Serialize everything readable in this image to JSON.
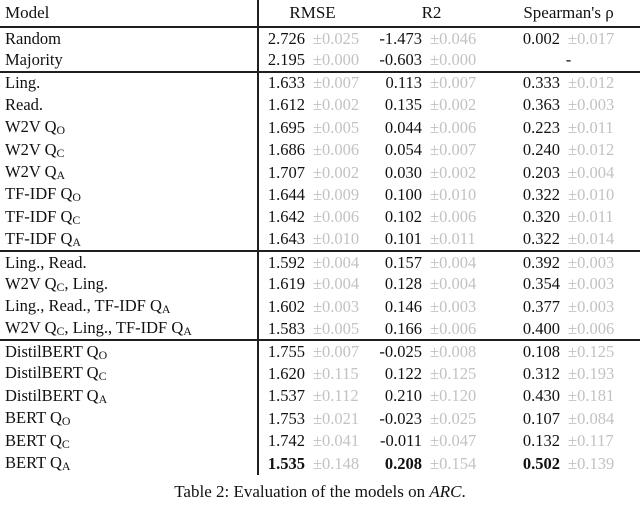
{
  "colors": {
    "background": "#ffffff",
    "text": "#111111",
    "std_muted": "#c2c2c2",
    "rule": "#1f1f1f"
  },
  "header": {
    "model": "Model",
    "rmse": "RMSE",
    "r2": "R2",
    "spearman": "Spearman's ρ"
  },
  "caption": {
    "prefix": "Table 2: Evaluation of the models on ",
    "italic": "ARC",
    "suffix": "."
  },
  "table": {
    "groups": [
      {
        "rows": [
          {
            "model": [
              {
                "t": "Random"
              }
            ],
            "rmse": "2.726",
            "rmse_std": "±0.025",
            "r2": "-1.473",
            "r2_std": "±0.046",
            "rho": "0.002",
            "rho_std": "±0.017",
            "bold": false
          },
          {
            "model": [
              {
                "t": "Majority"
              }
            ],
            "rmse": "2.195",
            "rmse_std": "±0.000",
            "r2": "-0.603",
            "r2_std": "±0.000",
            "rho": "-",
            "rho_std": null,
            "bold": false
          }
        ]
      },
      {
        "rows": [
          {
            "model": [
              {
                "t": "Ling."
              }
            ],
            "rmse": "1.633",
            "rmse_std": "±0.007",
            "r2": "0.113",
            "r2_std": "±0.007",
            "rho": "0.333",
            "rho_std": "±0.012",
            "bold": false
          },
          {
            "model": [
              {
                "t": "Read."
              }
            ],
            "rmse": "1.612",
            "rmse_std": "±0.002",
            "r2": "0.135",
            "r2_std": "±0.002",
            "rho": "0.363",
            "rho_std": "±0.003",
            "bold": false
          },
          {
            "model": [
              {
                "t": "W2V Q"
              },
              {
                "t": "O",
                "sub": true
              }
            ],
            "rmse": "1.695",
            "rmse_std": "±0.005",
            "r2": "0.044",
            "r2_std": "±0.006",
            "rho": "0.223",
            "rho_std": "±0.011",
            "bold": false
          },
          {
            "model": [
              {
                "t": "W2V Q"
              },
              {
                "t": "C",
                "sub": true
              }
            ],
            "rmse": "1.686",
            "rmse_std": "±0.006",
            "r2": "0.054",
            "r2_std": "±0.007",
            "rho": "0.240",
            "rho_std": "±0.012",
            "bold": false
          },
          {
            "model": [
              {
                "t": "W2V Q"
              },
              {
                "t": "A",
                "sub": true
              }
            ],
            "rmse": "1.707",
            "rmse_std": "±0.002",
            "r2": "0.030",
            "r2_std": "±0.002",
            "rho": "0.203",
            "rho_std": "±0.004",
            "bold": false
          },
          {
            "model": [
              {
                "t": "TF-IDF Q"
              },
              {
                "t": "O",
                "sub": true
              }
            ],
            "rmse": "1.644",
            "rmse_std": "±0.009",
            "r2": "0.100",
            "r2_std": "±0.010",
            "rho": "0.322",
            "rho_std": "±0.010",
            "bold": false
          },
          {
            "model": [
              {
                "t": "TF-IDF Q"
              },
              {
                "t": "C",
                "sub": true
              }
            ],
            "rmse": "1.642",
            "rmse_std": "±0.006",
            "r2": "0.102",
            "r2_std": "±0.006",
            "rho": "0.320",
            "rho_std": "±0.011",
            "bold": false
          },
          {
            "model": [
              {
                "t": "TF-IDF Q"
              },
              {
                "t": "A",
                "sub": true
              }
            ],
            "rmse": "1.643",
            "rmse_std": "±0.010",
            "r2": "0.101",
            "r2_std": "±0.011",
            "rho": "0.322",
            "rho_std": "±0.014",
            "bold": false
          }
        ]
      },
      {
        "rows": [
          {
            "model": [
              {
                "t": "Ling., Read."
              }
            ],
            "rmse": "1.592",
            "rmse_std": "±0.004",
            "r2": "0.157",
            "r2_std": "±0.004",
            "rho": "0.392",
            "rho_std": "±0.003",
            "bold": false
          },
          {
            "model": [
              {
                "t": "W2V Q"
              },
              {
                "t": "C",
                "sub": true
              },
              {
                "t": ", Ling."
              }
            ],
            "rmse": "1.619",
            "rmse_std": "±0.004",
            "r2": "0.128",
            "r2_std": "±0.004",
            "rho": "0.354",
            "rho_std": "±0.003",
            "bold": false
          },
          {
            "model": [
              {
                "t": "Ling., Read., TF-IDF Q"
              },
              {
                "t": "A",
                "sub": true
              }
            ],
            "rmse": "1.602",
            "rmse_std": "±0.003",
            "r2": "0.146",
            "r2_std": "±0.003",
            "rho": "0.377",
            "rho_std": "±0.003",
            "bold": false
          },
          {
            "model": [
              {
                "t": "W2V Q"
              },
              {
                "t": "C",
                "sub": true
              },
              {
                "t": ", Ling., TF-IDF Q"
              },
              {
                "t": "A",
                "sub": true
              }
            ],
            "rmse": "1.583",
            "rmse_std": "±0.005",
            "r2": "0.166",
            "r2_std": "±0.006",
            "rho": "0.400",
            "rho_std": "±0.006",
            "bold": false
          }
        ]
      },
      {
        "rows": [
          {
            "model": [
              {
                "t": "DistilBERT Q"
              },
              {
                "t": "O",
                "sub": true
              }
            ],
            "rmse": "1.755",
            "rmse_std": "±0.007",
            "r2": "-0.025",
            "r2_std": "±0.008",
            "rho": "0.108",
            "rho_std": "±0.125",
            "bold": false
          },
          {
            "model": [
              {
                "t": "DistilBERT Q"
              },
              {
                "t": "C",
                "sub": true
              }
            ],
            "rmse": "1.620",
            "rmse_std": "±0.115",
            "r2": "0.122",
            "r2_std": "±0.125",
            "rho": "0.312",
            "rho_std": "±0.193",
            "bold": false
          },
          {
            "model": [
              {
                "t": "DistilBERT Q"
              },
              {
                "t": "A",
                "sub": true
              }
            ],
            "rmse": "1.537",
            "rmse_std": "±0.112",
            "r2": "0.210",
            "r2_std": "±0.120",
            "rho": "0.430",
            "rho_std": "±0.181",
            "bold": false
          },
          {
            "model": [
              {
                "t": "BERT Q"
              },
              {
                "t": "O",
                "sub": true
              }
            ],
            "rmse": "1.753",
            "rmse_std": "±0.021",
            "r2": "-0.023",
            "r2_std": "±0.025",
            "rho": "0.107",
            "rho_std": "±0.084",
            "bold": false
          },
          {
            "model": [
              {
                "t": "BERT Q"
              },
              {
                "t": "C",
                "sub": true
              }
            ],
            "rmse": "1.742",
            "rmse_std": "±0.041",
            "r2": "-0.011",
            "r2_std": "±0.047",
            "rho": "0.132",
            "rho_std": "±0.117",
            "bold": false
          },
          {
            "model": [
              {
                "t": "BERT Q"
              },
              {
                "t": "A",
                "sub": true
              }
            ],
            "rmse": "1.535",
            "rmse_std": "±0.148",
            "r2": "0.208",
            "r2_std": "±0.154",
            "rho": "0.502",
            "rho_std": "±0.139",
            "bold": true
          }
        ]
      }
    ]
  }
}
